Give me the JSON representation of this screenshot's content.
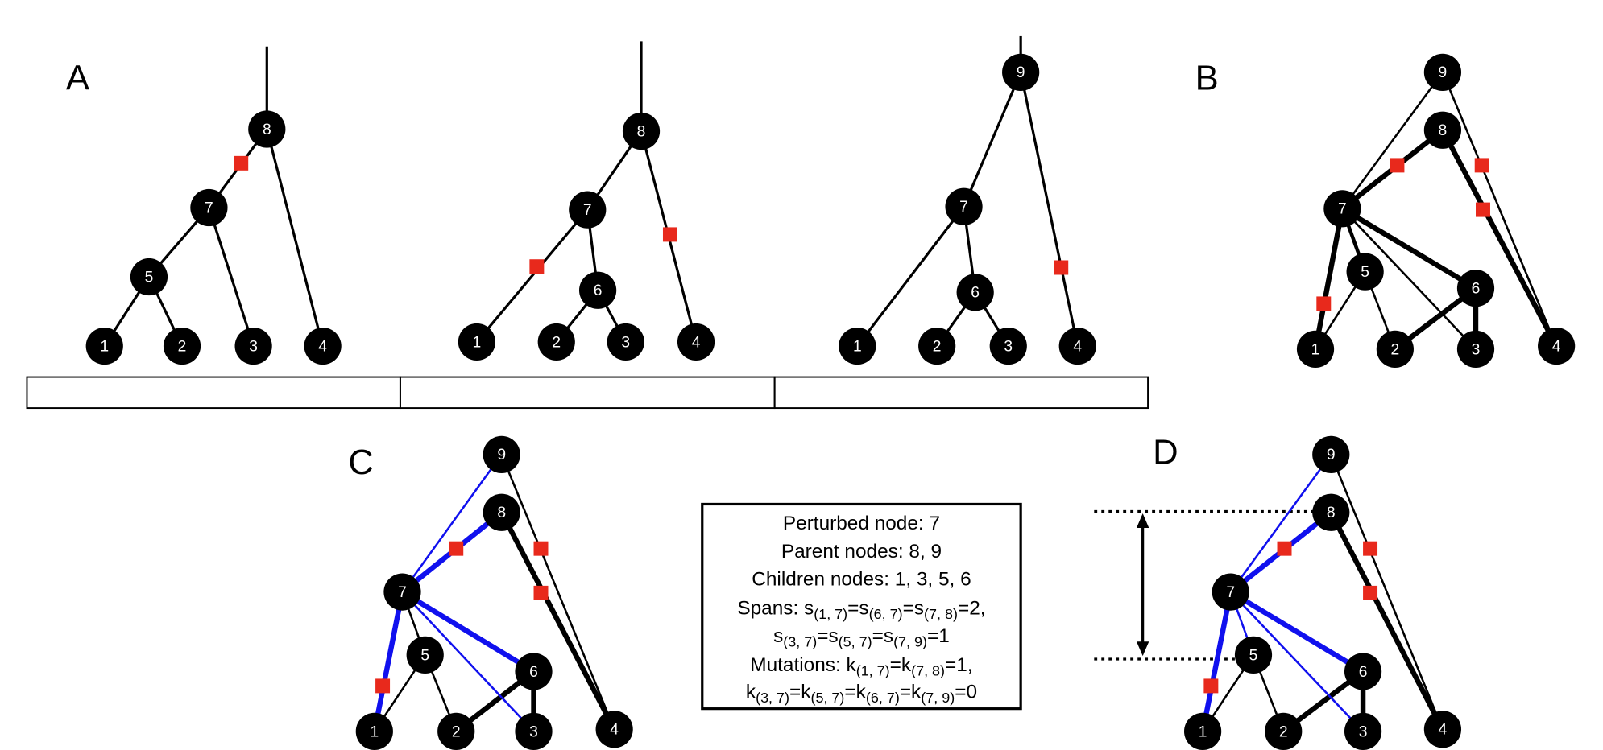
{
  "panels": [
    "A",
    "B",
    "C",
    "D"
  ],
  "trees": [
    {
      "nodes": [
        "1",
        "2",
        "3",
        "4",
        "5",
        "7",
        "8"
      ]
    },
    {
      "nodes": [
        "1",
        "2",
        "3",
        "4",
        "6",
        "7",
        "8"
      ]
    },
    {
      "nodes": [
        "1",
        "2",
        "3",
        "4",
        "6",
        "7",
        "9"
      ]
    },
    {
      "nodes": [
        "1",
        "2",
        "3",
        "4",
        "5",
        "6",
        "7",
        "8",
        "9"
      ]
    },
    {
      "nodes": [
        "1",
        "2",
        "3",
        "4",
        "5",
        "6",
        "7",
        "8",
        "9"
      ]
    },
    {
      "nodes": [
        "1",
        "2",
        "3",
        "4",
        "5",
        "6",
        "7",
        "8",
        "9"
      ]
    }
  ],
  "box": {
    "lines": [
      [
        "Perturbed node: 7"
      ],
      [
        "Parent nodes: 8, 9"
      ],
      [
        "Children nodes: 1, 3, 5, 6"
      ],
      [
        "Spans: s",
        "(1, 7)",
        "=s",
        "(6, 7)",
        "=s",
        "(7, 8)",
        "=2,"
      ],
      [
        "s",
        "(3, 7)",
        "=s",
        "(5, 7)",
        "=s",
        "(7, 9)",
        "=1"
      ],
      [
        "Mutations: k",
        "(1, 7)",
        "=k",
        "(7, 8)",
        "=1,"
      ],
      [
        "k",
        "(3, 7)",
        "=k",
        "(5, 7)",
        "=k",
        "(6, 7)",
        "=k",
        "(7, 9)",
        "=0"
      ]
    ]
  }
}
